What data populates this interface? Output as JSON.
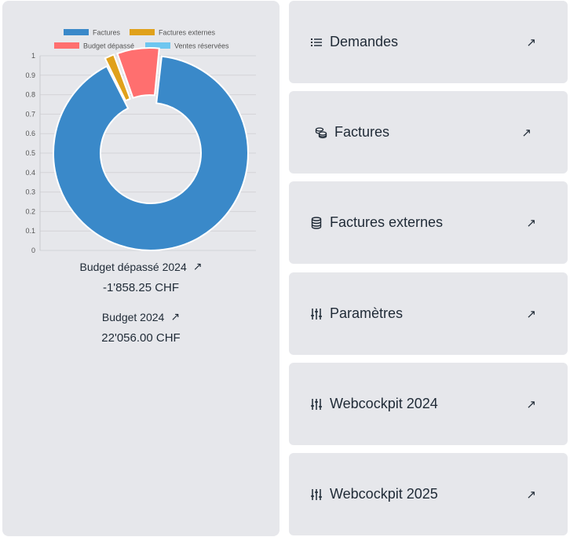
{
  "chart_data": {
    "type": "doughnut",
    "legend": [
      "Factures",
      "Factures externes",
      "Budget dépassé",
      "Ventes réservées"
    ],
    "colors": [
      "#3a89c9",
      "#e0a11b",
      "#ff6f6f",
      "#6ec6f0"
    ],
    "values": [
      0.91,
      0.018,
      0.072,
      0.0
    ],
    "y_ticks": [
      "1",
      "0.9",
      "0.8",
      "0.7",
      "0.6",
      "0.5",
      "0.4",
      "0.3",
      "0.2",
      "0.1",
      "0"
    ],
    "ylim": [
      0,
      1
    ]
  },
  "stats": {
    "budget_depasse": {
      "label": "Budget dépassé 2024",
      "value": "-1'858.25 CHF"
    },
    "budget": {
      "label": "Budget 2024",
      "value": "22'056.00 CHF"
    }
  },
  "nav": {
    "items": [
      {
        "label": "Demandes",
        "icon": "list-icon"
      },
      {
        "label": "Factures",
        "icon": "coins-icon"
      },
      {
        "label": "Factures externes",
        "icon": "database-icon"
      },
      {
        "label": "Paramètres",
        "icon": "sliders-icon"
      },
      {
        "label": "Webcockpit 2024",
        "icon": "sliders-icon"
      },
      {
        "label": "Webcockpit 2025",
        "icon": "sliders-icon"
      }
    ],
    "arrow": "↗"
  }
}
